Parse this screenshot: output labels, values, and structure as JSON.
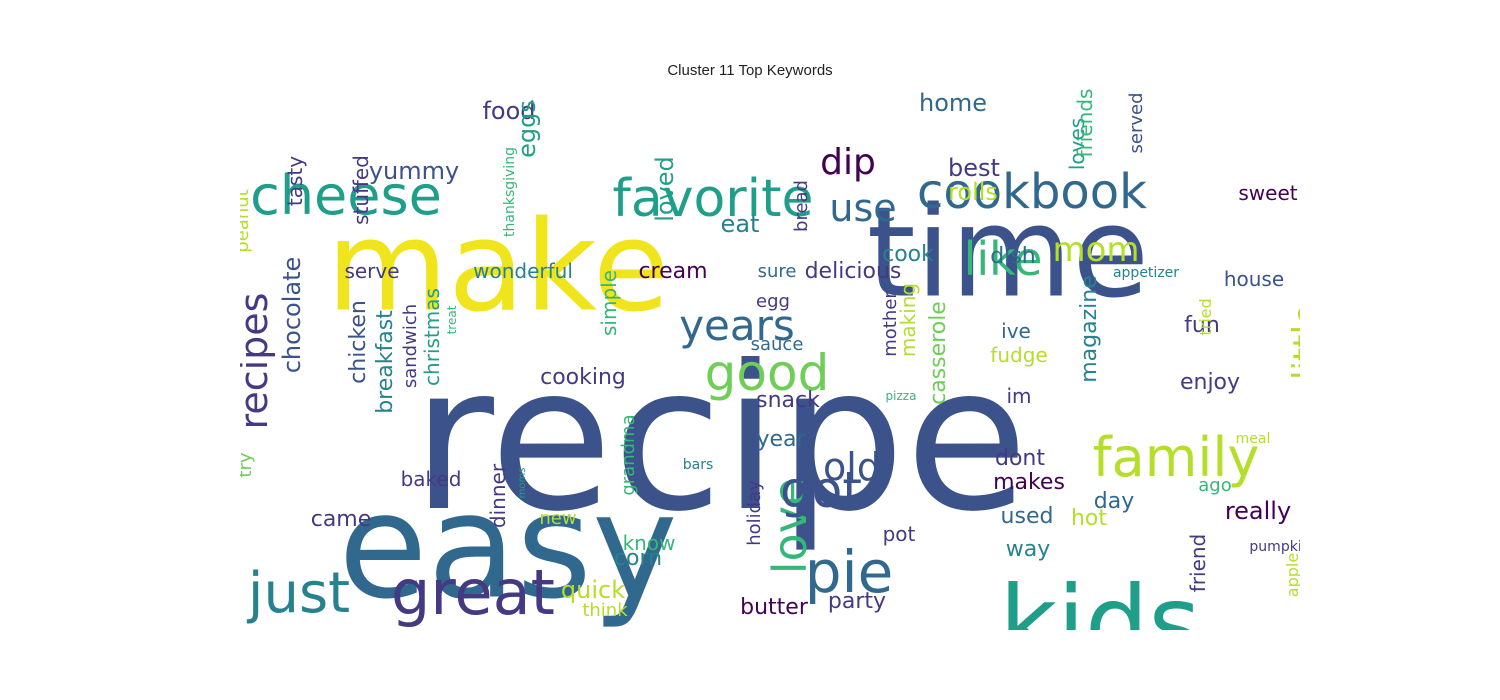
{
  "title": "Cluster 11 Top Keywords",
  "palette": {
    "purple": "#440154",
    "indigo": "#443a83",
    "blue": "#3b528b",
    "steel": "#31688e",
    "teal": "#26828e",
    "sea": "#1f9e89",
    "green": "#35b779",
    "lime": "#6ece58",
    "yellowgreen": "#b5de2b",
    "yellow": "#f0e41c"
  },
  "words": [
    {
      "text": "recipe",
      "color": "blue"
    },
    {
      "text": "easy",
      "color": "steel"
    },
    {
      "text": "make",
      "color": "yellow"
    },
    {
      "text": "time",
      "color": "blue"
    },
    {
      "text": "kids",
      "color": "sea"
    },
    {
      "text": "cheese",
      "color": "sea"
    },
    {
      "text": "favorite",
      "color": "sea"
    },
    {
      "text": "cookbook",
      "color": "steel"
    },
    {
      "text": "great",
      "color": "indigo"
    },
    {
      "text": "just",
      "color": "teal"
    },
    {
      "text": "family",
      "color": "yellowgreen"
    },
    {
      "text": "pie",
      "color": "steel"
    },
    {
      "text": "good",
      "color": "lime"
    },
    {
      "text": "love",
      "color": "green"
    },
    {
      "text": "got",
      "color": "blue"
    },
    {
      "text": "like",
      "color": "green"
    },
    {
      "text": "years",
      "color": "steel"
    },
    {
      "text": "recipes",
      "color": "indigo"
    },
    {
      "text": "little",
      "color": "yellowgreen"
    },
    {
      "text": "mom",
      "color": "yellowgreen"
    },
    {
      "text": "old",
      "color": "blue"
    },
    {
      "text": "use",
      "color": "steel"
    },
    {
      "text": "dip",
      "color": "purple"
    },
    {
      "text": "food",
      "color": "indigo"
    },
    {
      "text": "home",
      "color": "steel"
    },
    {
      "text": "yummy",
      "color": "blue"
    },
    {
      "text": "best",
      "color": "indigo"
    },
    {
      "text": "rolls",
      "color": "yellowgreen"
    },
    {
      "text": "eat",
      "color": "teal"
    },
    {
      "text": "eggs",
      "color": "sea"
    },
    {
      "text": "loved",
      "color": "sea"
    },
    {
      "text": "chocolate",
      "color": "blue"
    },
    {
      "text": "tasty",
      "color": "indigo"
    },
    {
      "text": "stuffed",
      "color": "indigo"
    },
    {
      "text": "peanut",
      "color": "yellowgreen"
    },
    {
      "text": "thanksgiving",
      "color": "green"
    },
    {
      "text": "bread",
      "color": "indigo"
    },
    {
      "text": "loves",
      "color": "sea"
    },
    {
      "text": "friends",
      "color": "green"
    },
    {
      "text": "served",
      "color": "blue"
    },
    {
      "text": "sweet",
      "color": "purple"
    },
    {
      "text": "cook",
      "color": "teal"
    },
    {
      "text": "dish",
      "color": "steel"
    },
    {
      "text": "delicious",
      "color": "indigo"
    },
    {
      "text": "cream",
      "color": "purple"
    },
    {
      "text": "sure",
      "color": "steel"
    },
    {
      "text": "wonderful",
      "color": "teal"
    },
    {
      "text": "serve",
      "color": "indigo"
    },
    {
      "text": "house",
      "color": "blue"
    },
    {
      "text": "appetizer",
      "color": "teal"
    },
    {
      "text": "christmas",
      "color": "sea"
    },
    {
      "text": "chicken",
      "color": "blue"
    },
    {
      "text": "breakfast",
      "color": "teal"
    },
    {
      "text": "sandwich",
      "color": "indigo"
    },
    {
      "text": "treat",
      "color": "green"
    },
    {
      "text": "simple",
      "color": "green"
    },
    {
      "text": "making",
      "color": "yellowgreen"
    },
    {
      "text": "mother",
      "color": "indigo"
    },
    {
      "text": "casserole",
      "color": "lime"
    },
    {
      "text": "magazine",
      "color": "teal"
    },
    {
      "text": "egg",
      "color": "indigo"
    },
    {
      "text": "sauce",
      "color": "steel"
    },
    {
      "text": "ive",
      "color": "steel"
    },
    {
      "text": "fudge",
      "color": "yellowgreen"
    },
    {
      "text": "fun",
      "color": "indigo"
    },
    {
      "text": "cooking",
      "color": "indigo"
    },
    {
      "text": "snack",
      "color": "indigo"
    },
    {
      "text": "pizza",
      "color": "green"
    },
    {
      "text": "im",
      "color": "indigo"
    },
    {
      "text": "enjoy",
      "color": "indigo"
    },
    {
      "text": "tried",
      "color": "yellowgreen"
    },
    {
      "text": "year",
      "color": "steel"
    },
    {
      "text": "dont",
      "color": "indigo"
    },
    {
      "text": "meal",
      "color": "yellowgreen"
    },
    {
      "text": "grandma",
      "color": "green"
    },
    {
      "text": "dinner",
      "color": "indigo"
    },
    {
      "text": "baked",
      "color": "indigo"
    },
    {
      "text": "try",
      "color": "lime"
    },
    {
      "text": "moms",
      "color": "sea"
    },
    {
      "text": "bars",
      "color": "teal"
    },
    {
      "text": "makes",
      "color": "purple"
    },
    {
      "text": "day",
      "color": "steel"
    },
    {
      "text": "ago",
      "color": "green"
    },
    {
      "text": "came",
      "color": "indigo"
    },
    {
      "text": "new",
      "color": "yellowgreen"
    },
    {
      "text": "used",
      "color": "steel"
    },
    {
      "text": "really",
      "color": "purple"
    },
    {
      "text": "hot",
      "color": "yellowgreen"
    },
    {
      "text": "holiday",
      "color": "indigo"
    },
    {
      "text": "way",
      "color": "teal"
    },
    {
      "text": "know",
      "color": "green"
    },
    {
      "text": "pot",
      "color": "indigo"
    },
    {
      "text": "corn",
      "color": "teal"
    },
    {
      "text": "friend",
      "color": "indigo"
    },
    {
      "text": "apple",
      "color": "yellowgreen"
    },
    {
      "text": "pumpkin",
      "color": "indigo"
    },
    {
      "text": "quick",
      "color": "yellowgreen"
    },
    {
      "text": "party",
      "color": "indigo"
    },
    {
      "text": "butter",
      "color": "purple"
    },
    {
      "text": "think",
      "color": "yellowgreen"
    }
  ]
}
